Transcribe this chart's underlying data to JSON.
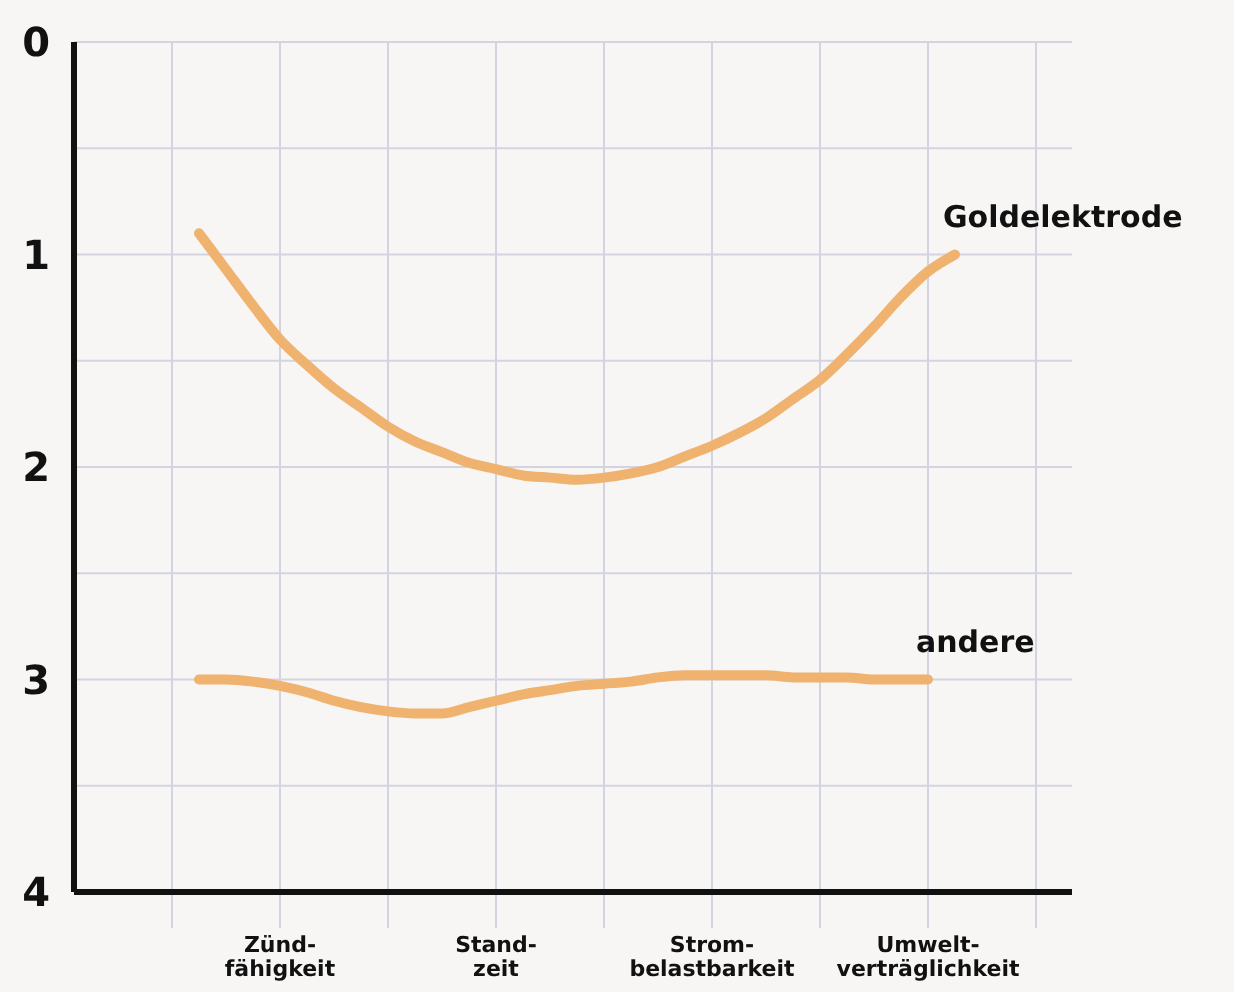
{
  "chart_data": {
    "type": "line",
    "ylim": [
      4,
      0
    ],
    "categories": [
      null,
      null,
      null,
      null,
      "Zünd-\nfähigkeit",
      null,
      null,
      null,
      null,
      null,
      null,
      null,
      "Stand-\nzeit",
      null,
      null,
      null,
      null,
      null,
      null,
      null,
      "Strom-\nbelastbarkeit",
      null,
      null,
      null,
      null,
      null,
      null,
      null,
      "Umwelt-\nverträglichkeit",
      null,
      null,
      null,
      null
    ],
    "yticks": [
      0,
      {
        "value": 0.5,
        "label": null
      },
      1,
      {
        "value": 1.5,
        "label": null
      },
      2,
      {
        "value": 2.5,
        "label": null
      },
      3,
      {
        "value": 3.5,
        "label": null
      },
      4
    ],
    "grid": true,
    "line_style": "solid",
    "series": [
      {
        "name": "Goldelektrode",
        "color": "#efb26f",
        "values": [
          null,
          0.9,
          1.07,
          1.24,
          1.4,
          1.52,
          1.63,
          1.72,
          1.81,
          1.88,
          1.93,
          1.98,
          2.01,
          2.04,
          2.05,
          2.06,
          2.05,
          2.03,
          2.0,
          1.95,
          1.9,
          1.84,
          1.77,
          1.68,
          1.59,
          1.47,
          1.34,
          1.2,
          1.08,
          1.0,
          null,
          null,
          null
        ]
      },
      {
        "name": "andere",
        "color": "#efb26f",
        "values": [
          null,
          3.0,
          3.0,
          3.01,
          3.03,
          3.06,
          3.1,
          3.13,
          3.15,
          3.16,
          3.16,
          3.13,
          3.1,
          3.07,
          3.05,
          3.03,
          3.02,
          3.01,
          2.99,
          2.98,
          2.98,
          2.98,
          2.98,
          2.99,
          2.99,
          2.99,
          3.0,
          3.0,
          3.0,
          null,
          null,
          null,
          null
        ]
      }
    ]
  }
}
